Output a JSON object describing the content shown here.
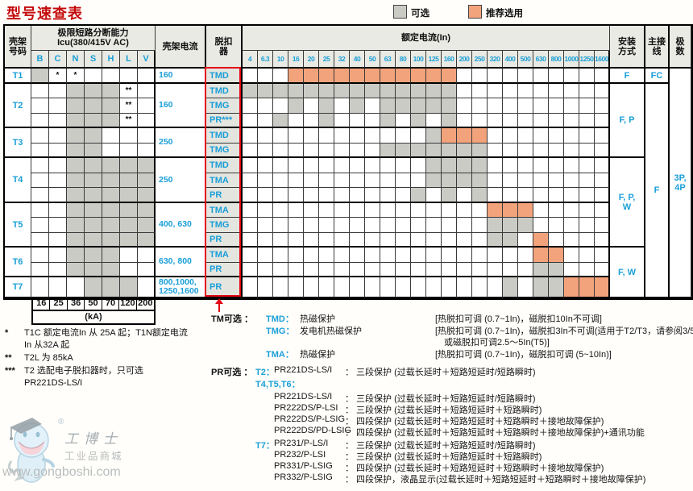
{
  "title": "型号速查表",
  "legend": {
    "optional_label": "可选",
    "recommended_label": "推荐选用"
  },
  "colors": {
    "optional": "#cacbc5",
    "recommended": "#f3a37c",
    "blue": "#1a9fd8",
    "red": "#e30613"
  },
  "table": {
    "header": {
      "frame": "壳架\n号码",
      "icu_line1": "极限短路分断能力",
      "icu_line2": "Icu(380/415V AC)",
      "icu_cols": [
        "B",
        "C",
        "N",
        "S",
        "H",
        "L",
        "V"
      ],
      "current": "壳架电流",
      "trip": "脱扣\n器",
      "rated": "额定电流(In)",
      "rated_cols": [
        "4",
        "6.3",
        "10",
        "16",
        "20",
        "25",
        "32",
        "40",
        "50",
        "63",
        "80",
        "100",
        "125",
        "160",
        "200",
        "250",
        "320",
        "400",
        "500",
        "630",
        "800",
        "1000",
        "1250",
        "1600"
      ],
      "mounting": "安装\n方式",
      "wiring": "主接\n线",
      "poles": "极\n数"
    },
    "groups": [
      {
        "frame": "T1",
        "current": "160",
        "rows": [
          {
            "trip": "TMD",
            "icu_gray": [
              "B"
            ],
            "icu_marks": {
              "C": "*",
              "N": "*"
            },
            "gray": [],
            "orange": [
              "16",
              "20",
              "25",
              "32",
              "40",
              "50",
              "63",
              "80",
              "100",
              "125",
              "160"
            ]
          }
        ]
      },
      {
        "frame": "T2",
        "current": "160",
        "rows": [
          {
            "trip": "TMD",
            "icu_gray": [
              "N",
              "S",
              "H"
            ],
            "icu_marks": {
              "L": "**"
            },
            "gray": [
              "4",
              "6.3",
              "10",
              "16",
              "20",
              "25",
              "32",
              "40",
              "50",
              "63",
              "80",
              "100",
              "125",
              "160"
            ],
            "orange": []
          },
          {
            "trip": "TMG",
            "icu_gray": [
              "N",
              "S",
              "H"
            ],
            "icu_marks": {
              "L": "**"
            },
            "gray": [
              "16",
              "25",
              "40",
              "63",
              "80",
              "100",
              "125",
              "160"
            ],
            "orange": []
          },
          {
            "trip": "PR***",
            "icu_gray": [
              "N",
              "S",
              "H"
            ],
            "icu_marks": {
              "L": "**"
            },
            "gray": [
              "10",
              "25",
              "63",
              "100",
              "160"
            ],
            "orange": []
          }
        ]
      },
      {
        "frame": "T3",
        "current": "250",
        "rows": [
          {
            "trip": "TMD",
            "icu_gray": [
              "N",
              "S"
            ],
            "icu_marks": {},
            "gray": [
              "125"
            ],
            "orange": [
              "160",
              "200",
              "250"
            ]
          },
          {
            "trip": "TMG",
            "icu_gray": [
              "N",
              "S"
            ],
            "icu_marks": {},
            "gray": [
              "63",
              "80",
              "100",
              "125",
              "160",
              "200",
              "250"
            ],
            "orange": []
          }
        ]
      },
      {
        "frame": "T4",
        "current": "250",
        "rows": [
          {
            "trip": "TMD",
            "icu_gray": [
              "N",
              "S",
              "H",
              "L",
              "V"
            ],
            "icu_marks": {},
            "gray": [
              "125",
              "160",
              "200",
              "250"
            ],
            "orange": []
          },
          {
            "trip": "TMA",
            "icu_gray": [
              "N",
              "S",
              "H",
              "L",
              "V"
            ],
            "icu_marks": {},
            "gray": [
              "125",
              "160",
              "200",
              "250"
            ],
            "orange": []
          },
          {
            "trip": "PR",
            "icu_gray": [
              "N",
              "S",
              "H",
              "L",
              "V"
            ],
            "icu_marks": {},
            "gray": [
              "100",
              "160",
              "250"
            ],
            "orange": []
          }
        ]
      },
      {
        "frame": "T5",
        "current": "400, 630",
        "rows": [
          {
            "trip": "TMA",
            "icu_gray": [
              "N",
              "S",
              "H",
              "L",
              "V"
            ],
            "icu_marks": {},
            "gray": [],
            "orange": [
              "320",
              "400",
              "500"
            ]
          },
          {
            "trip": "TMG",
            "icu_gray": [
              "N",
              "S",
              "H",
              "L",
              "V"
            ],
            "icu_marks": {},
            "gray": [
              "320",
              "400",
              "500"
            ],
            "orange": []
          },
          {
            "trip": "PR",
            "icu_gray": [
              "N",
              "S",
              "H",
              "L",
              "V"
            ],
            "icu_marks": {},
            "gray": [
              "320",
              "400"
            ],
            "orange": [
              "630"
            ]
          }
        ]
      },
      {
        "frame": "T6",
        "current": "630, 800",
        "rows": [
          {
            "trip": "TMA",
            "icu_gray": [
              "N",
              "S",
              "H"
            ],
            "icu_marks": {},
            "gray": [],
            "orange": [
              "630",
              "800"
            ]
          },
          {
            "trip": "PR",
            "icu_gray": [
              "N",
              "S",
              "H"
            ],
            "icu_marks": {},
            "gray": [
              "630",
              "800"
            ],
            "orange": []
          }
        ]
      },
      {
        "frame": "T7",
        "current": "800,1000,\n1250,1600",
        "rows": [
          {
            "trip": "PR",
            "icu_gray": [
              "S",
              "H",
              "L"
            ],
            "icu_marks": {},
            "gray": [
              "400",
              "630",
              "800"
            ],
            "orange": [
              "1000",
              "1250",
              "1600"
            ]
          }
        ]
      }
    ],
    "mounting_spans": [
      {
        "frames": [
          "T1"
        ],
        "label": "F"
      },
      {
        "frames": [
          "T2",
          "T3"
        ],
        "label": "F, P"
      },
      {
        "frames": [
          "T4",
          "T5"
        ],
        "label": "F, P,\nW"
      },
      {
        "frames": [
          "T6",
          "T7"
        ],
        "label": "F, W"
      }
    ],
    "wiring_spans": [
      {
        "frames": [
          "T1"
        ],
        "label": "FC"
      },
      {
        "frames": [
          "T2",
          "T3",
          "T4",
          "T5",
          "T6",
          "T7"
        ],
        "label": "F"
      }
    ],
    "poles_spans": [
      {
        "frames": [
          "T1",
          "T2",
          "T3",
          "T4",
          "T5",
          "T6",
          "T7"
        ],
        "label": "3P,\n4P"
      }
    ]
  },
  "ka_scale": {
    "values": [
      "16",
      "25",
      "36",
      "50",
      "70",
      "120",
      "200"
    ],
    "unit": "(kA)"
  },
  "footnotes": [
    {
      "mark": "*",
      "text": "T1C 额定电流In 从 25A 起；T1N额定电流\nIn 从32A 起"
    },
    {
      "mark": "**",
      "text": "T2L 为 85kA"
    },
    {
      "mark": "***",
      "text": "T2 选配电子脱扣器时，只可选\nPR221DS-LS/I"
    }
  ],
  "tm_section": {
    "label": "TM可选 ：",
    "items": [
      {
        "name": "TMD：",
        "desc": "热磁保护",
        "detail": "[热脱扣可调 (0.7~1In)，磁脱扣10In不可调]",
        "detail2": ""
      },
      {
        "name": "TMG：",
        "desc": "发电机热磁保护",
        "detail": "[热脱扣可调 (0.7~1In)，磁脱扣3In不可调(适用于T2/T3，请参阅3/5页)",
        "detail2": "或磁脱扣可调2.5～5In(T5)]"
      },
      {
        "name": "TMA：",
        "desc": "热磁保护",
        "detail": "[热脱扣可调 (0.7~1In)，磁脱扣可调 (5~10In)]",
        "detail2": ""
      }
    ]
  },
  "pr_section": {
    "label": "PR可选 ：",
    "rows": [
      {
        "frame": "T2：",
        "model": "PR221DS-LS/I",
        "desc": "： 三段保护 (过载长延时＋短路短延时/短路瞬时)"
      },
      {
        "frame": "T4,T5,T6：",
        "model": "",
        "desc": ""
      },
      {
        "frame": "",
        "model": "PR221DS-LS/I",
        "desc": "： 三段保护 (过载长延时＋短路短延时/短路瞬时)"
      },
      {
        "frame": "",
        "model": "PR222DS/P-LSI",
        "desc": "： 三段保护 (过载长延时＋短路短延时＋短路瞬时)"
      },
      {
        "frame": "",
        "model": "PR222DS/P-LSIG",
        "desc": "： 四段保护 (过载长延时＋短路短延时＋短路瞬时＋接地故障保护)"
      },
      {
        "frame": "",
        "model": "PR222DS/PD-LSIG",
        "desc": "： 四段保护 (过载长延时＋短路短延时＋短路瞬时＋接地故障保护)+通讯功能"
      },
      {
        "frame": "T7：",
        "model": "PR231/P-LS/I",
        "desc": "： 三段保护 (过载长延时＋短路短延时/短路瞬时)"
      },
      {
        "frame": "",
        "model": "PR232/P-LSI",
        "desc": "： 三段保护 (过载长延时＋短路短延时＋短路瞬时)"
      },
      {
        "frame": "",
        "model": "PR331/P-LSIG",
        "desc": "： 四段保护 (过载长延时＋短路短延时＋短路瞬时＋接地故障保护)"
      },
      {
        "frame": "",
        "model": "PR332/P-LSIG",
        "desc": "： 四段保护，液晶显示(过载长延时＋短路短延时＋短路瞬时＋接地故障保护)"
      }
    ]
  },
  "watermark": {
    "reg": "®",
    "brand": "工博士",
    "tagline": "工业品商城",
    "url": "www.gongboshi.com"
  }
}
